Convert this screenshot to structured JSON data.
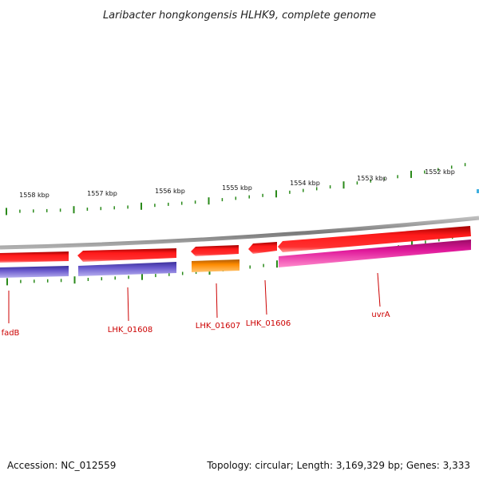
{
  "title": "Laribacter hongkongensis HLHK9, complete genome",
  "accession_text": "Accession: NC_012559",
  "summary_text": "Topology: circular; Length: 3,169,329 bp; Genes: 3,333",
  "colors": {
    "backbone": "#8a8a8a",
    "tick": "#2a8a1a",
    "forward_cds": "#e81010",
    "reverse_track_gene": "#6a5acd",
    "orange_gene": "#ff8c00",
    "magenta_gene": "#e0189a",
    "label": "#cc0000",
    "edge_marker": "#3fb0e0"
  },
  "scale_labels": [
    "1558 kbp",
    "1557 kbp",
    "1556 kbp",
    "1555 kbp",
    "1554 kbp",
    "1553 kbp",
    "1552 kbp"
  ],
  "gene_labels": [
    "fadB",
    "LHK_01608",
    "LHK_01607",
    "LHK_01606",
    "uvrA"
  ]
}
